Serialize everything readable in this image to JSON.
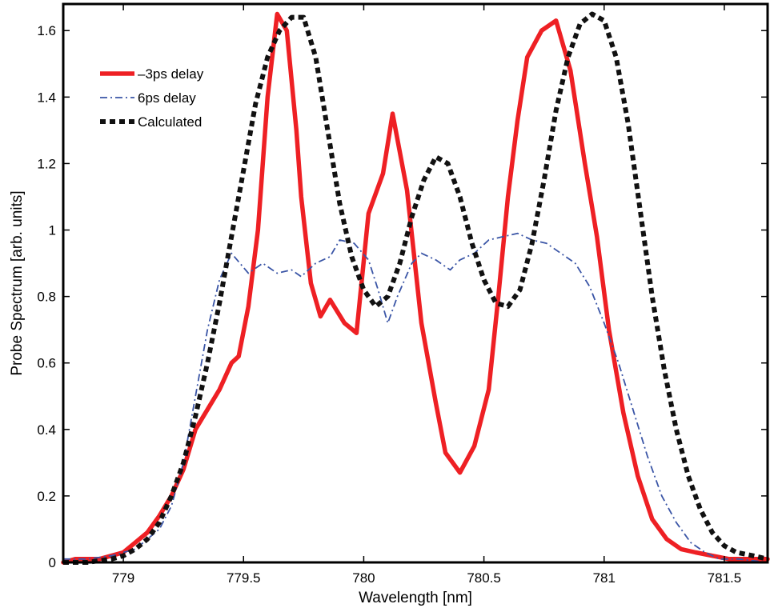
{
  "chart_data": {
    "type": "line",
    "title": "",
    "xlabel": "Wavelength [nm]",
    "ylabel": "Probe Spectrum [arb. units]",
    "xlim": [
      778.75,
      781.68
    ],
    "ylim": [
      0,
      1.68
    ],
    "xticks": [
      779,
      779.5,
      780,
      780.5,
      781,
      781.5
    ],
    "xtick_labels": [
      "779",
      "779.5",
      "780",
      "780.5",
      "781",
      "781.5"
    ],
    "yticks": [
      0,
      0.2,
      0.4,
      0.6,
      0.8,
      1,
      1.2,
      1.4,
      1.6
    ],
    "ytick_labels": [
      "0",
      "0.2",
      "0.4",
      "0.6",
      "0.8",
      "1",
      "1.2",
      "1.4",
      "1.6"
    ],
    "grid": false,
    "legend_position": "top-left",
    "series": [
      {
        "name": "–3ps delay",
        "color": "#ee2024",
        "style": "solid",
        "x": [
          778.75,
          778.8,
          778.85,
          778.9,
          778.95,
          779.0,
          779.05,
          779.1,
          779.15,
          779.2,
          779.25,
          779.3,
          779.35,
          779.4,
          779.45,
          779.48,
          779.52,
          779.56,
          779.6,
          779.64,
          779.68,
          779.72,
          779.74,
          779.78,
          779.82,
          779.86,
          779.92,
          779.97,
          780.02,
          780.08,
          780.12,
          780.18,
          780.24,
          780.3,
          780.34,
          780.4,
          780.46,
          780.52,
          780.56,
          780.6,
          780.64,
          780.68,
          780.74,
          780.8,
          780.86,
          780.92,
          780.97,
          781.02,
          781.08,
          781.14,
          781.2,
          781.26,
          781.32,
          781.38,
          781.45,
          781.52,
          781.6,
          781.68
        ],
        "y": [
          0.0,
          0.01,
          0.01,
          0.01,
          0.02,
          0.03,
          0.06,
          0.09,
          0.14,
          0.2,
          0.28,
          0.4,
          0.46,
          0.52,
          0.6,
          0.62,
          0.77,
          1.0,
          1.4,
          1.65,
          1.6,
          1.3,
          1.1,
          0.84,
          0.74,
          0.79,
          0.72,
          0.69,
          1.05,
          1.17,
          1.35,
          1.12,
          0.72,
          0.48,
          0.33,
          0.27,
          0.35,
          0.52,
          0.8,
          1.1,
          1.33,
          1.52,
          1.6,
          1.63,
          1.48,
          1.2,
          0.98,
          0.7,
          0.45,
          0.26,
          0.13,
          0.07,
          0.04,
          0.03,
          0.02,
          0.01,
          0.01,
          0.01
        ]
      },
      {
        "name": "6ps delay",
        "color": "#3a55a6",
        "style": "dashdot",
        "x": [
          778.75,
          778.85,
          778.95,
          779.05,
          779.1,
          779.15,
          779.2,
          779.25,
          779.3,
          779.35,
          779.4,
          779.45,
          779.52,
          779.58,
          779.64,
          779.7,
          779.74,
          779.8,
          779.86,
          779.9,
          779.96,
          780.02,
          780.06,
          780.1,
          780.14,
          780.2,
          780.24,
          780.3,
          780.36,
          780.4,
          780.46,
          780.52,
          780.58,
          780.64,
          780.7,
          780.76,
          780.82,
          780.88,
          780.94,
          781.0,
          781.06,
          781.12,
          781.18,
          781.24,
          781.3,
          781.36,
          781.42,
          781.48,
          781.56,
          781.68
        ],
        "y": [
          0.01,
          0.01,
          0.02,
          0.04,
          0.07,
          0.1,
          0.17,
          0.3,
          0.5,
          0.7,
          0.85,
          0.93,
          0.87,
          0.9,
          0.87,
          0.88,
          0.86,
          0.9,
          0.92,
          0.97,
          0.96,
          0.91,
          0.82,
          0.72,
          0.8,
          0.9,
          0.93,
          0.91,
          0.88,
          0.91,
          0.93,
          0.97,
          0.98,
          0.99,
          0.97,
          0.96,
          0.93,
          0.9,
          0.83,
          0.72,
          0.6,
          0.46,
          0.32,
          0.2,
          0.12,
          0.06,
          0.03,
          0.01,
          0.01,
          0.0
        ]
      },
      {
        "name": "Calculated",
        "color": "#111111",
        "style": "dotted",
        "x": [
          778.75,
          778.85,
          778.95,
          779.0,
          779.05,
          779.1,
          779.15,
          779.2,
          779.25,
          779.3,
          779.35,
          779.4,
          779.45,
          779.5,
          779.55,
          779.6,
          779.65,
          779.7,
          779.75,
          779.8,
          779.85,
          779.9,
          779.95,
          780.0,
          780.05,
          780.1,
          780.15,
          780.2,
          780.25,
          780.3,
          780.35,
          780.4,
          780.45,
          780.5,
          780.55,
          780.6,
          780.65,
          780.7,
          780.75,
          780.8,
          780.85,
          780.9,
          780.95,
          781.0,
          781.05,
          781.1,
          781.15,
          781.2,
          781.25,
          781.3,
          781.35,
          781.4,
          781.45,
          781.5,
          781.55,
          781.62,
          781.68
        ],
        "y": [
          0.0,
          0.0,
          0.01,
          0.02,
          0.04,
          0.07,
          0.12,
          0.2,
          0.3,
          0.44,
          0.6,
          0.78,
          0.98,
          1.18,
          1.38,
          1.52,
          1.6,
          1.64,
          1.64,
          1.52,
          1.3,
          1.08,
          0.92,
          0.82,
          0.77,
          0.8,
          0.9,
          1.04,
          1.15,
          1.22,
          1.2,
          1.1,
          0.96,
          0.85,
          0.78,
          0.77,
          0.82,
          0.96,
          1.15,
          1.36,
          1.52,
          1.62,
          1.65,
          1.63,
          1.52,
          1.32,
          1.06,
          0.8,
          0.58,
          0.4,
          0.26,
          0.16,
          0.09,
          0.05,
          0.03,
          0.02,
          0.01
        ]
      }
    ]
  }
}
